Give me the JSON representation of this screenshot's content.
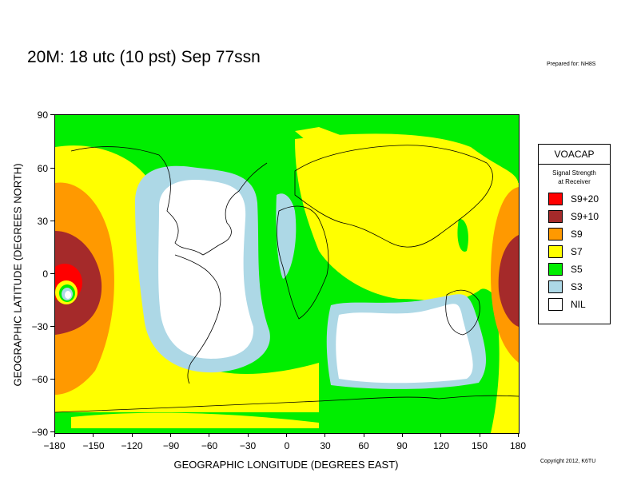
{
  "title": "20M:  18 utc (10 pst) Sep 77ssn",
  "prepared_by": "Prepared for: NH8S",
  "copyright": "Copyright 2012, K6TU",
  "xlabel": "GEOGRAPHIC LONGITUDE (DEGREES EAST)",
  "ylabel": "GEOGRAPHIC LATITUDE (DEGREES NORTH)",
  "y_ticks": [
    "90",
    "60",
    "30",
    "0",
    "−30",
    "−60",
    "−90"
  ],
  "x_ticks": [
    "−180",
    "−150",
    "−120",
    "−90",
    "−60",
    "−30",
    "0",
    "30",
    "60",
    "90",
    "120",
    "150",
    "180"
  ],
  "legend": {
    "title": "VOACAP",
    "subtitle_line1": "Signal Strength",
    "subtitle_line2": "at Receiver",
    "items": [
      {
        "label": "S9+20",
        "color": "#ff0000"
      },
      {
        "label": "S9+10",
        "color": "#a52a2a"
      },
      {
        "label": "S9",
        "color": "#ff9900"
      },
      {
        "label": "S7",
        "color": "#ffff00"
      },
      {
        "label": "S5",
        "color": "#00ee00"
      },
      {
        "label": "S3",
        "color": "#add8e6"
      },
      {
        "label": "NIL",
        "color": "#ffffff"
      }
    ]
  }
}
